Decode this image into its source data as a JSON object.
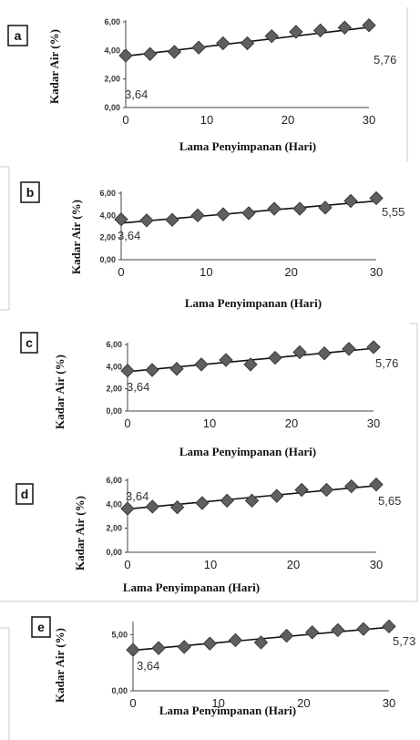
{
  "chart_data": [
    {
      "type": "scatter",
      "panel": "a",
      "xlabel": "Lama Penyimpanan  (Hari)",
      "ylabel": "Kadar Air (%)",
      "xlim": [
        0,
        30
      ],
      "ylim": [
        0,
        6
      ],
      "xticks": [
        "0",
        "10",
        "20",
        "30"
      ],
      "yticks": [
        "0,00",
        "2,00",
        "4,00",
        "6,00"
      ],
      "x": [
        0,
        3,
        6,
        9,
        12,
        15,
        18,
        21,
        24,
        27,
        30
      ],
      "y": [
        3.64,
        3.75,
        3.9,
        4.2,
        4.5,
        4.5,
        5.0,
        5.3,
        5.4,
        5.6,
        5.76
      ],
      "trendline": [
        3.6,
        5.62
      ],
      "labels": [
        "3,64",
        "5,76"
      ]
    },
    {
      "type": "scatter",
      "panel": "b",
      "xlabel": "Lama Penyimpanan  (Hari)",
      "ylabel": "Kadar Air (%)",
      "xlim": [
        0,
        30
      ],
      "ylim": [
        0,
        6
      ],
      "xticks": [
        "0",
        "10",
        "20",
        "30"
      ],
      "yticks": [
        "0,00",
        "2,00",
        "4,00",
        "6,00"
      ],
      "x": [
        0,
        3,
        6,
        9,
        12,
        15,
        18,
        21,
        24,
        27,
        30
      ],
      "y": [
        3.64,
        3.55,
        3.6,
        4.0,
        4.1,
        4.2,
        4.6,
        4.6,
        4.7,
        5.3,
        5.55
      ],
      "trendline": [
        3.3,
        5.3
      ],
      "labels": [
        "3,64",
        "5,55"
      ]
    },
    {
      "type": "scatter",
      "panel": "c",
      "xlabel": "Lama Penyimpanan  (Hari)",
      "ylabel": "Kadar Air (%)",
      "xlim": [
        0,
        30
      ],
      "ylim": [
        0,
        6
      ],
      "xticks": [
        "0",
        "10",
        "20",
        "30"
      ],
      "yticks": [
        "0,00",
        "2,00",
        "4,00",
        "6,00"
      ],
      "x": [
        0,
        3,
        6,
        9,
        12,
        15,
        18,
        21,
        24,
        27,
        30
      ],
      "y": [
        3.64,
        3.7,
        3.8,
        4.2,
        4.6,
        4.2,
        4.8,
        5.3,
        5.2,
        5.6,
        5.76
      ],
      "trendline": [
        3.55,
        5.65
      ],
      "labels": [
        "3,64",
        "5,76"
      ]
    },
    {
      "type": "scatter",
      "panel": "d",
      "xlabel": "Lama Penyimpanan  (Hari)",
      "ylabel": "Kadar Air (%)",
      "xlim": [
        0,
        30
      ],
      "ylim": [
        0,
        6
      ],
      "xticks": [
        "0",
        "10",
        "20",
        "30"
      ],
      "yticks": [
        "0,00",
        "2,00",
        "4,00",
        "6,00"
      ],
      "x": [
        0,
        3,
        6,
        9,
        12,
        15,
        18,
        21,
        24,
        27,
        30
      ],
      "y": [
        3.64,
        3.8,
        3.75,
        4.1,
        4.3,
        4.3,
        4.7,
        5.2,
        5.2,
        5.5,
        5.65
      ],
      "trendline": [
        3.6,
        5.55
      ],
      "labels": [
        "3,64",
        "5,65"
      ]
    },
    {
      "type": "scatter",
      "panel": "e",
      "xlabel": "Lama Penyimpanan  (Hari)",
      "ylabel": "Kadar Air (%)",
      "xlim": [
        0,
        30
      ],
      "ylim": [
        0,
        6
      ],
      "xticks": [
        "0",
        "10",
        "20",
        "30"
      ],
      "yticks": [
        "0,00",
        "5,00"
      ],
      "x": [
        0,
        3,
        6,
        9,
        12,
        15,
        18,
        21,
        24,
        27,
        30
      ],
      "y": [
        3.64,
        3.8,
        3.9,
        4.2,
        4.5,
        4.3,
        4.9,
        5.2,
        5.4,
        5.5,
        5.73
      ],
      "trendline": [
        3.6,
        5.65
      ],
      "labels": [
        "3,64",
        "5,73"
      ]
    }
  ]
}
